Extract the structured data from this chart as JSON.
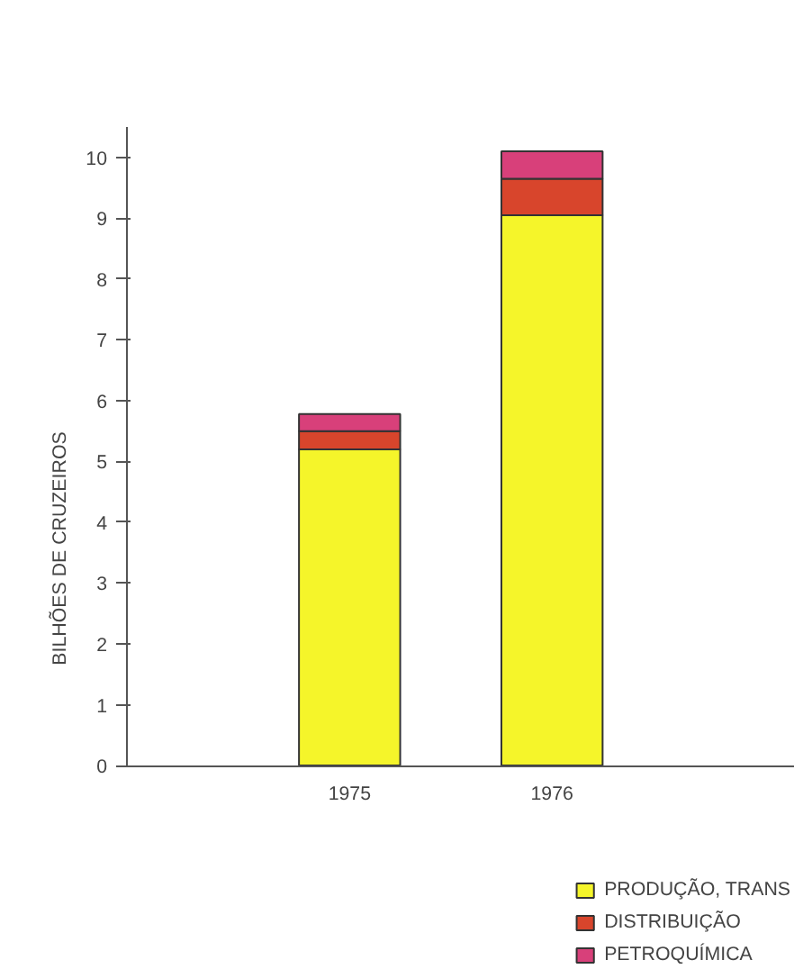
{
  "chart_data": {
    "type": "bar",
    "stacked": true,
    "ylabel": "BILHÕES DE CRUZEIROS",
    "categories": [
      "1975",
      "1976"
    ],
    "series": [
      {
        "name": "PRODUÇÃO, TRANS",
        "color": "#f5f52a",
        "values": [
          5.2,
          9.05
        ]
      },
      {
        "name": "DISTRIBUIÇÃO",
        "color": "#d8452c",
        "values": [
          0.3,
          0.6
        ]
      },
      {
        "name": "PETROQUÍMICA",
        "color": "#d8407a",
        "values": [
          0.28,
          0.45
        ]
      }
    ],
    "ylim": [
      0,
      10.5
    ],
    "yticks": [
      0,
      1,
      2,
      3,
      4,
      5,
      6,
      7,
      8,
      9,
      10
    ],
    "grid": false,
    "legend": "bottom"
  }
}
